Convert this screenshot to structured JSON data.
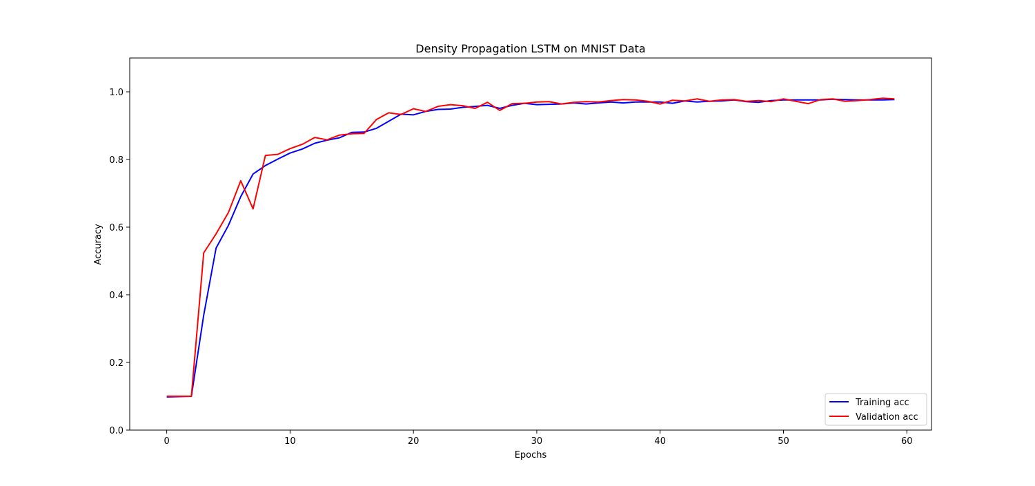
{
  "chart_data": {
    "type": "line",
    "title": "Density Propagation LSTM on MNIST Data",
    "xlabel": "Epochs",
    "ylabel": "Accuracy",
    "xlim": [
      -3,
      62
    ],
    "ylim": [
      0.0,
      1.1
    ],
    "xticks": [
      0,
      10,
      20,
      30,
      40,
      50,
      60
    ],
    "yticks": [
      0.0,
      0.2,
      0.4,
      0.6,
      0.8,
      1.0
    ],
    "xtick_labels": [
      "0",
      "10",
      "20",
      "30",
      "40",
      "50",
      "60"
    ],
    "ytick_labels": [
      "0.0",
      "0.2",
      "0.4",
      "0.6",
      "0.8",
      "1.0"
    ],
    "grid": false,
    "legend_position": "lower-right",
    "x": [
      0,
      1,
      2,
      3,
      4,
      5,
      6,
      7,
      8,
      9,
      10,
      11,
      12,
      13,
      14,
      15,
      16,
      17,
      18,
      19,
      20,
      21,
      22,
      23,
      24,
      25,
      26,
      27,
      28,
      29,
      30,
      31,
      32,
      33,
      34,
      35,
      36,
      37,
      38,
      39,
      40,
      41,
      42,
      43,
      44,
      45,
      46,
      47,
      48,
      49,
      50,
      51,
      52,
      53,
      54,
      55,
      56,
      57,
      58,
      59
    ],
    "series": [
      {
        "name": "Training acc",
        "color": "#0000ff",
        "values": [
          0.098,
          0.099,
          0.1,
          0.34,
          0.538,
          0.605,
          0.69,
          0.757,
          0.782,
          0.801,
          0.819,
          0.831,
          0.848,
          0.857,
          0.864,
          0.88,
          0.881,
          0.892,
          0.913,
          0.934,
          0.932,
          0.942,
          0.948,
          0.949,
          0.954,
          0.957,
          0.96,
          0.951,
          0.96,
          0.966,
          0.962,
          0.963,
          0.964,
          0.967,
          0.964,
          0.967,
          0.97,
          0.967,
          0.97,
          0.97,
          0.97,
          0.966,
          0.973,
          0.97,
          0.972,
          0.973,
          0.976,
          0.971,
          0.969,
          0.974,
          0.976,
          0.976,
          0.976,
          0.976,
          0.978,
          0.977,
          0.976,
          0.976,
          0.976,
          0.977
        ]
      },
      {
        "name": "Validation acc",
        "color": "#ff0000",
        "values": [
          0.1,
          0.1,
          0.1,
          0.524,
          0.58,
          0.643,
          0.737,
          0.654,
          0.812,
          0.815,
          0.832,
          0.845,
          0.865,
          0.858,
          0.872,
          0.876,
          0.877,
          0.918,
          0.938,
          0.933,
          0.95,
          0.942,
          0.957,
          0.962,
          0.959,
          0.951,
          0.969,
          0.945,
          0.965,
          0.966,
          0.97,
          0.971,
          0.964,
          0.969,
          0.971,
          0.97,
          0.974,
          0.977,
          0.976,
          0.972,
          0.964,
          0.975,
          0.973,
          0.979,
          0.972,
          0.976,
          0.977,
          0.972,
          0.974,
          0.971,
          0.979,
          0.972,
          0.965,
          0.977,
          0.979,
          0.972,
          0.974,
          0.977,
          0.981,
          0.979
        ]
      }
    ]
  }
}
